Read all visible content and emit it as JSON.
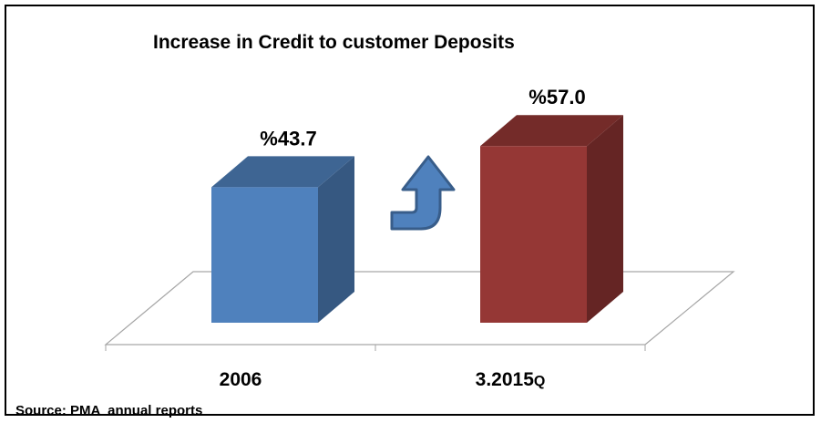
{
  "chart_data": {
    "type": "bar",
    "title": "Increase in Credit to customer Deposits",
    "categories": [
      "2006",
      "3.2015Q"
    ],
    "series": [
      {
        "values": [
          43.7,
          57.0
        ]
      }
    ],
    "data_labels": [
      "%43.7",
      "%57.0"
    ],
    "colors": [
      "#4f81bd",
      "#953735"
    ],
    "ylim": [
      0,
      80
    ],
    "grid": false,
    "legend": "none",
    "style": "3d-column",
    "annotation": "up-arrow-icon"
  },
  "source": "Source: PMA  annual reports",
  "colors": {
    "arrow_fill": "#4f81bd",
    "arrow_stroke": "#385d8a"
  }
}
